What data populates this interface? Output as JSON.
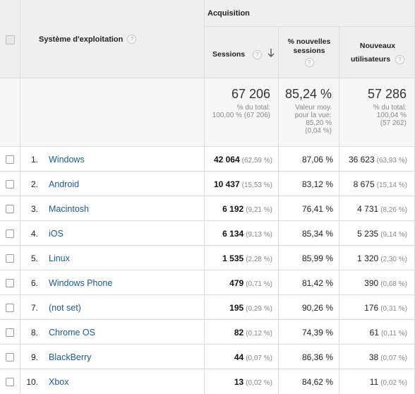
{
  "header": {
    "os_label": "Système d'exploitation",
    "acquisition_label": "Acquisition",
    "sessions_label": "Sessions",
    "pct_new_line1": "% nouvelles",
    "pct_new_line2": "sessions",
    "new_users_line1": "Nouveaux",
    "new_users_line2": "utilisateurs",
    "help_glyph": "?"
  },
  "summary": {
    "sessions_total": "67 206",
    "sessions_sub1": "% du total:",
    "sessions_sub2": "100,00 % (67 206)",
    "pct_new_total": "85,24 %",
    "pct_new_sub1": "Valeur moy.",
    "pct_new_sub2": "pour la vue:",
    "pct_new_sub3": "85,20 %",
    "pct_new_sub4": "(0,04 %)",
    "new_users_total": "57 286",
    "new_users_sub1": "% du total:",
    "new_users_sub2": "100,04 %",
    "new_users_sub3": "(57 262)"
  },
  "rows": [
    {
      "idx": "1.",
      "os": "Windows",
      "sessions": "42 064",
      "sessions_pct": "(62,59 %)",
      "pct_new": "87,06 %",
      "new_users": "36 623",
      "new_users_pct": "(63,93 %)"
    },
    {
      "idx": "2.",
      "os": "Android",
      "sessions": "10 437",
      "sessions_pct": "(15,53 %)",
      "pct_new": "83,12 %",
      "new_users": "8 675",
      "new_users_pct": "(15,14 %)"
    },
    {
      "idx": "3.",
      "os": "Macintosh",
      "sessions": "6 192",
      "sessions_pct": "(9,21 %)",
      "pct_new": "76,41 %",
      "new_users": "4 731",
      "new_users_pct": "(8,26 %)"
    },
    {
      "idx": "4.",
      "os": "iOS",
      "sessions": "6 134",
      "sessions_pct": "(9,13 %)",
      "pct_new": "85,34 %",
      "new_users": "5 235",
      "new_users_pct": "(9,14 %)"
    },
    {
      "idx": "5.",
      "os": "Linux",
      "sessions": "1 535",
      "sessions_pct": "(2,28 %)",
      "pct_new": "85,99 %",
      "new_users": "1 320",
      "new_users_pct": "(2,30 %)"
    },
    {
      "idx": "6.",
      "os": "Windows Phone",
      "sessions": "479",
      "sessions_pct": "(0,71 %)",
      "pct_new": "81,42 %",
      "new_users": "390",
      "new_users_pct": "(0,68 %)"
    },
    {
      "idx": "7.",
      "os": "(not set)",
      "sessions": "195",
      "sessions_pct": "(0,29 %)",
      "pct_new": "90,26 %",
      "new_users": "176",
      "new_users_pct": "(0,31 %)"
    },
    {
      "idx": "8.",
      "os": "Chrome OS",
      "sessions": "82",
      "sessions_pct": "(0,12 %)",
      "pct_new": "74,39 %",
      "new_users": "61",
      "new_users_pct": "(0,11 %)"
    },
    {
      "idx": "9.",
      "os": "BlackBerry",
      "sessions": "44",
      "sessions_pct": "(0,07 %)",
      "pct_new": "86,36 %",
      "new_users": "38",
      "new_users_pct": "(0,07 %)"
    },
    {
      "idx": "10.",
      "os": "Xbox",
      "sessions": "13",
      "sessions_pct": "(0,02 %)",
      "pct_new": "84,62 %",
      "new_users": "11",
      "new_users_pct": "(0,02 %)"
    }
  ]
}
